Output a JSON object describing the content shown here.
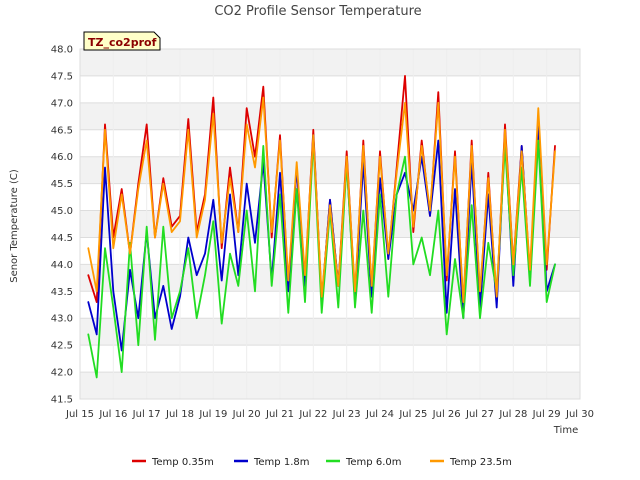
{
  "chart_data": {
    "type": "line",
    "title": "CO2 Profile Sensor Temperature",
    "xlabel": "Time",
    "ylabel": "Senor Temperature (C)",
    "tag_label": "TZ_co2prof",
    "ylim": [
      41.5,
      48.0
    ],
    "xlim": [
      "Jul 15",
      "Jul 30"
    ],
    "y_ticks": [
      "41.5",
      "42.0",
      "42.5",
      "43.0",
      "43.5",
      "44.0",
      "44.5",
      "45.0",
      "45.5",
      "46.0",
      "46.5",
      "47.0",
      "47.5",
      "48.0"
    ],
    "x_ticks": [
      "Jul 15",
      "Jul 16",
      "Jul 17",
      "Jul 18",
      "Jul 19",
      "Jul 20",
      "Jul 21",
      "Jul 22",
      "Jul 23",
      "Jul 24",
      "Jul 25",
      "Jul 26",
      "Jul 27",
      "Jul 28",
      "Jul 29",
      "Jul 30"
    ],
    "grid": "horizontal bands",
    "legend_position": "bottom",
    "series": [
      {
        "name": "Temp 0.35m",
        "color": "#dd0000",
        "x": [
          "Jul 15 06:00",
          "Jul 15 12:00",
          "Jul 15 18:00",
          "Jul 16 00:00",
          "Jul 16 06:00",
          "Jul 16 12:00",
          "Jul 16 18:00",
          "Jul 17 00:00",
          "Jul 17 06:00",
          "Jul 17 12:00",
          "Jul 17 18:00",
          "Jul 18 00:00",
          "Jul 18 06:00",
          "Jul 18 12:00",
          "Jul 18 18:00",
          "Jul 19 00:00",
          "Jul 19 06:00",
          "Jul 19 12:00",
          "Jul 19 18:00",
          "Jul 20 00:00",
          "Jul 20 06:00",
          "Jul 20 12:00",
          "Jul 20 18:00",
          "Jul 21 00:00",
          "Jul 21 06:00",
          "Jul 21 12:00",
          "Jul 21 18:00",
          "Jul 22 00:00",
          "Jul 22 06:00",
          "Jul 22 12:00",
          "Jul 22 18:00",
          "Jul 23 00:00",
          "Jul 23 06:00",
          "Jul 23 12:00",
          "Jul 23 18:00",
          "Jul 24 00:00",
          "Jul 24 06:00",
          "Jul 24 12:00",
          "Jul 24 18:00",
          "Jul 25 00:00",
          "Jul 25 06:00",
          "Jul 25 12:00",
          "Jul 25 18:00",
          "Jul 26 00:00",
          "Jul 26 06:00",
          "Jul 26 12:00",
          "Jul 26 18:00",
          "Jul 27 00:00",
          "Jul 27 06:00",
          "Jul 27 12:00",
          "Jul 27 18:00",
          "Jul 28 00:00",
          "Jul 28 06:00",
          "Jul 28 12:00",
          "Jul 28 18:00",
          "Jul 29 00:00",
          "Jul 29 06:00"
        ],
        "values": [
          43.8,
          43.3,
          46.6,
          44.5,
          45.4,
          44.2,
          45.5,
          46.6,
          44.5,
          45.6,
          44.7,
          44.9,
          46.7,
          44.6,
          45.3,
          47.1,
          44.3,
          45.8,
          44.6,
          46.9,
          46.0,
          47.3,
          44.5,
          46.4,
          43.6,
          45.8,
          43.7,
          46.5,
          43.3,
          45.2,
          43.6,
          46.1,
          43.4,
          46.3,
          43.5,
          46.1,
          44.1,
          45.8,
          47.5,
          44.6,
          46.3,
          44.9,
          47.2,
          43.7,
          46.1,
          43.2,
          46.3,
          43.4,
          45.7,
          43.3,
          46.6,
          44.0,
          46.2,
          43.8,
          46.7,
          43.9,
          46.2
        ]
      },
      {
        "name": "Temp 1.8m",
        "color": "#0000cc",
        "x": [
          "Jul 15 06:00",
          "Jul 15 12:00",
          "Jul 15 18:00",
          "Jul 16 00:00",
          "Jul 16 06:00",
          "Jul 16 12:00",
          "Jul 16 18:00",
          "Jul 17 00:00",
          "Jul 17 06:00",
          "Jul 17 12:00",
          "Jul 17 18:00",
          "Jul 18 00:00",
          "Jul 18 06:00",
          "Jul 18 12:00",
          "Jul 18 18:00",
          "Jul 19 00:00",
          "Jul 19 06:00",
          "Jul 19 12:00",
          "Jul 19 18:00",
          "Jul 20 00:00",
          "Jul 20 06:00",
          "Jul 20 12:00",
          "Jul 20 18:00",
          "Jul 21 00:00",
          "Jul 21 06:00",
          "Jul 21 12:00",
          "Jul 21 18:00",
          "Jul 22 00:00",
          "Jul 22 06:00",
          "Jul 22 12:00",
          "Jul 22 18:00",
          "Jul 23 00:00",
          "Jul 23 06:00",
          "Jul 23 12:00",
          "Jul 23 18:00",
          "Jul 24 00:00",
          "Jul 24 06:00",
          "Jul 24 12:00",
          "Jul 24 18:00",
          "Jul 25 00:00",
          "Jul 25 06:00",
          "Jul 25 12:00",
          "Jul 25 18:00",
          "Jul 26 00:00",
          "Jul 26 06:00",
          "Jul 26 12:00",
          "Jul 26 18:00",
          "Jul 27 00:00",
          "Jul 27 06:00",
          "Jul 27 12:00",
          "Jul 27 18:00",
          "Jul 28 00:00",
          "Jul 28 06:00",
          "Jul 28 12:00",
          "Jul 28 18:00",
          "Jul 29 00:00",
          "Jul 29 06:00"
        ],
        "values": [
          43.3,
          42.7,
          45.8,
          43.5,
          42.4,
          43.9,
          43.0,
          44.6,
          43.0,
          43.6,
          42.8,
          43.4,
          44.5,
          43.8,
          44.2,
          45.2,
          43.7,
          45.3,
          43.8,
          45.5,
          44.4,
          45.9,
          43.7,
          45.7,
          43.5,
          45.8,
          43.6,
          46.4,
          43.3,
          45.2,
          43.6,
          45.9,
          43.3,
          45.9,
          43.4,
          45.6,
          44.1,
          45.3,
          45.7,
          45.0,
          46.0,
          44.9,
          46.3,
          43.1,
          45.4,
          43.0,
          45.9,
          43.2,
          45.3,
          43.2,
          46.4,
          43.6,
          46.2,
          43.7,
          46.6,
          43.5,
          44.0
        ]
      },
      {
        "name": "Temp 6.0m",
        "color": "#22dd22",
        "x": [
          "Jul 15 06:00",
          "Jul 15 12:00",
          "Jul 15 18:00",
          "Jul 16 00:00",
          "Jul 16 06:00",
          "Jul 16 12:00",
          "Jul 16 18:00",
          "Jul 17 00:00",
          "Jul 17 06:00",
          "Jul 17 12:00",
          "Jul 17 18:00",
          "Jul 18 00:00",
          "Jul 18 06:00",
          "Jul 18 12:00",
          "Jul 18 18:00",
          "Jul 19 00:00",
          "Jul 19 06:00",
          "Jul 19 12:00",
          "Jul 19 18:00",
          "Jul 20 00:00",
          "Jul 20 06:00",
          "Jul 20 12:00",
          "Jul 20 18:00",
          "Jul 21 00:00",
          "Jul 21 06:00",
          "Jul 21 12:00",
          "Jul 21 18:00",
          "Jul 22 00:00",
          "Jul 22 06:00",
          "Jul 22 12:00",
          "Jul 22 18:00",
          "Jul 23 00:00",
          "Jul 23 06:00",
          "Jul 23 12:00",
          "Jul 23 18:00",
          "Jul 24 00:00",
          "Jul 24 06:00",
          "Jul 24 12:00",
          "Jul 24 18:00",
          "Jul 25 00:00",
          "Jul 25 06:00",
          "Jul 25 12:00",
          "Jul 25 18:00",
          "Jul 26 00:00",
          "Jul 26 06:00",
          "Jul 26 12:00",
          "Jul 26 18:00",
          "Jul 27 00:00",
          "Jul 27 06:00",
          "Jul 27 12:00",
          "Jul 27 18:00",
          "Jul 28 00:00",
          "Jul 28 06:00",
          "Jul 28 12:00",
          "Jul 28 18:00",
          "Jul 29 00:00",
          "Jul 29 06:00"
        ],
        "values": [
          42.7,
          41.9,
          44.3,
          43.2,
          42.0,
          44.4,
          42.5,
          44.7,
          42.6,
          44.7,
          43.0,
          43.5,
          44.3,
          43.0,
          43.8,
          44.8,
          42.9,
          44.2,
          43.6,
          45.0,
          43.5,
          46.2,
          43.6,
          45.3,
          43.1,
          45.4,
          43.3,
          46.3,
          43.1,
          45.0,
          43.2,
          45.9,
          43.2,
          45.0,
          43.1,
          45.3,
          43.4,
          45.3,
          46.0,
          44.0,
          44.5,
          43.8,
          45.0,
          42.7,
          44.1,
          43.0,
          45.1,
          43.0,
          44.4,
          43.5,
          46.2,
          43.8,
          45.8,
          43.6,
          46.3,
          43.3,
          44.0
        ]
      },
      {
        "name": "Temp 23.5m",
        "color": "#ff9900",
        "x": [
          "Jul 15 06:00",
          "Jul 15 12:00",
          "Jul 15 18:00",
          "Jul 16 00:00",
          "Jul 16 06:00",
          "Jul 16 12:00",
          "Jul 16 18:00",
          "Jul 17 00:00",
          "Jul 17 06:00",
          "Jul 17 12:00",
          "Jul 17 18:00",
          "Jul 18 00:00",
          "Jul 18 06:00",
          "Jul 18 12:00",
          "Jul 18 18:00",
          "Jul 19 00:00",
          "Jul 19 06:00",
          "Jul 19 12:00",
          "Jul 19 18:00",
          "Jul 20 00:00",
          "Jul 20 06:00",
          "Jul 20 12:00",
          "Jul 20 18:00",
          "Jul 21 00:00",
          "Jul 21 06:00",
          "Jul 21 12:00",
          "Jul 21 18:00",
          "Jul 22 00:00",
          "Jul 22 06:00",
          "Jul 22 12:00",
          "Jul 22 18:00",
          "Jul 23 00:00",
          "Jul 23 06:00",
          "Jul 23 12:00",
          "Jul 23 18:00",
          "Jul 24 00:00",
          "Jul 24 06:00",
          "Jul 24 12:00",
          "Jul 24 18:00",
          "Jul 25 00:00",
          "Jul 25 06:00",
          "Jul 25 12:00",
          "Jul 25 18:00",
          "Jul 26 00:00",
          "Jul 26 06:00",
          "Jul 26 12:00",
          "Jul 26 18:00",
          "Jul 27 00:00",
          "Jul 27 06:00",
          "Jul 27 12:00",
          "Jul 27 18:00",
          "Jul 28 00:00",
          "Jul 28 06:00",
          "Jul 28 12:00",
          "Jul 28 18:00",
          "Jul 29 00:00",
          "Jul 29 06:00"
        ],
        "values": [
          44.3,
          43.5,
          46.5,
          44.3,
          45.3,
          44.2,
          45.4,
          46.3,
          44.5,
          45.5,
          44.6,
          44.8,
          46.5,
          44.5,
          45.2,
          46.8,
          44.4,
          45.6,
          44.6,
          46.6,
          45.8,
          47.1,
          44.6,
          46.3,
          43.7,
          45.9,
          43.8,
          46.4,
          43.4,
          45.1,
          43.6,
          46.0,
          43.5,
          46.2,
          43.6,
          46.0,
          44.2,
          45.7,
          47.0,
          44.7,
          46.2,
          45.0,
          47.0,
          43.8,
          46.0,
          43.3,
          46.2,
          43.5,
          45.6,
          43.4,
          46.5,
          44.0,
          46.1,
          43.9,
          46.9,
          44.0,
          46.1
        ]
      }
    ]
  }
}
